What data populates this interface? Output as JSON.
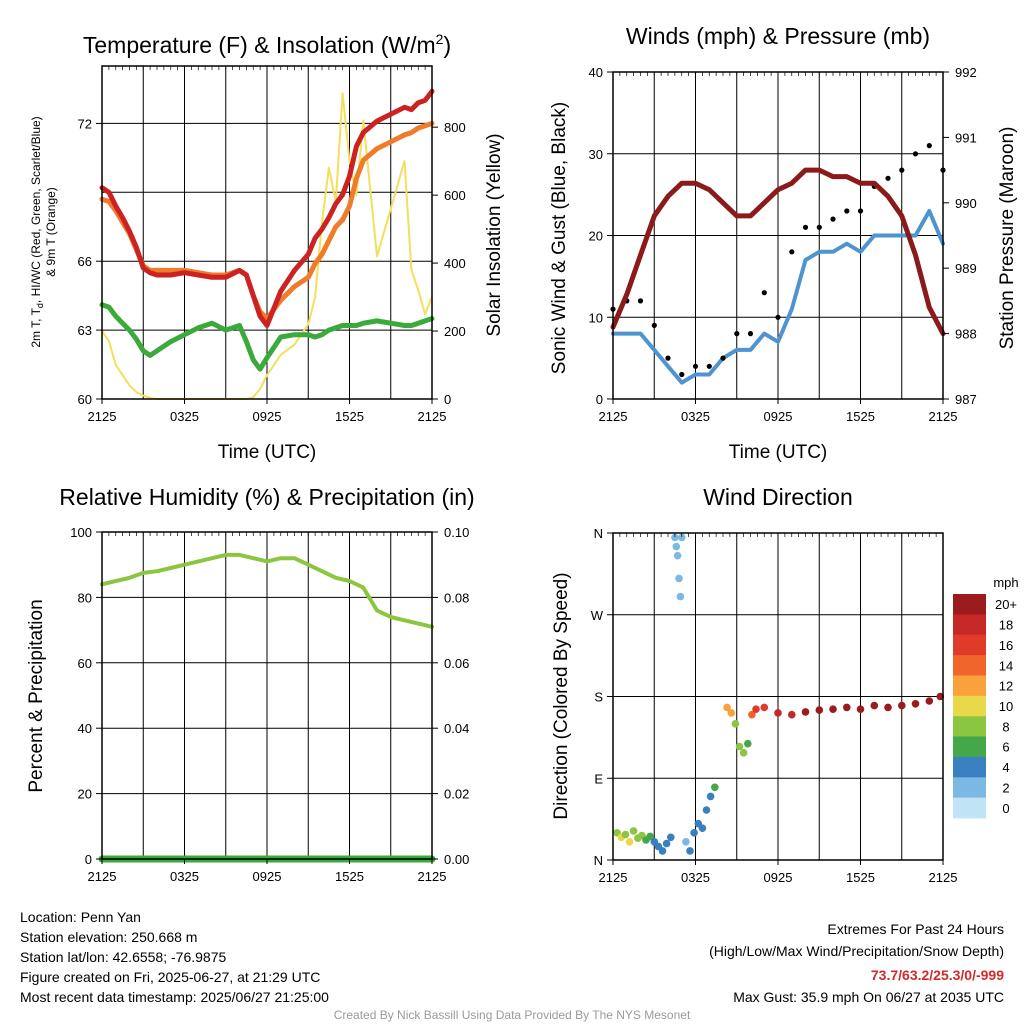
{
  "panels": {
    "temp": {
      "title_main": "Temperature (F) & Insolation (W/m",
      "title_sup": "2",
      "title_close": ")",
      "ylabel_left_1": "2m T, T",
      "ylabel_left_sub": "d",
      "ylabel_left_2": ", HI/WC (Red, Green, Scarlet/Blue)",
      "ylabel_left_3": "& 9m T (Orange)",
      "ylabel_right": "Solar Insolation (Yellow)",
      "xlabel": "Time (UTC)"
    },
    "wind": {
      "title": "Winds (mph) & Pressure (mb)",
      "ylabel_left": "Sonic Wind & Gust (Blue, Black)",
      "ylabel_right": "Station Pressure (Maroon)",
      "xlabel": "Time (UTC)"
    },
    "rh": {
      "title": "Relative Humidity (%) & Precipitation (in)",
      "ylabel_left": "Percent & Precipitation"
    },
    "dir": {
      "title": "Wind Direction",
      "ylabel_left": "Direction (Colored By Speed)",
      "legend_title": "mph"
    }
  },
  "chart_data": [
    {
      "type": "line",
      "title": "Temperature (F) & Insolation (W/m2)",
      "xlabel": "Time (UTC)",
      "x_ticks": [
        "2125",
        "0325",
        "0925",
        "1525",
        "2125"
      ],
      "xlim": [
        0,
        24
      ],
      "ylim": [
        60,
        74.5
      ],
      "y_ticks": [
        60,
        63,
        66,
        72
      ],
      "y2lim": [
        0,
        980
      ],
      "y2_ticks": [
        0,
        200,
        400,
        600,
        800
      ],
      "x": [
        0,
        0.5,
        1,
        1.5,
        2,
        2.5,
        3,
        3.5,
        4,
        5,
        6,
        7,
        8,
        9,
        10,
        10.5,
        11,
        11.5,
        12,
        13,
        14,
        15,
        15.5,
        16,
        16.5,
        17,
        17.5,
        18,
        18.5,
        19,
        20,
        21,
        22,
        22.5,
        23,
        23.5,
        24
      ],
      "series": [
        {
          "name": "2m T",
          "axis": "left",
          "color": "#cc2222",
          "values": [
            69.2,
            69.0,
            68.4,
            67.9,
            67.3,
            66.6,
            65.7,
            65.5,
            65.4,
            65.4,
            65.5,
            65.4,
            65.3,
            65.3,
            65.6,
            65.4,
            64.5,
            63.6,
            63.2,
            64.7,
            65.6,
            66.3,
            67.0,
            67.4,
            67.9,
            68.5,
            68.9,
            69.7,
            71.0,
            71.6,
            72.1,
            72.4,
            72.7,
            72.6,
            72.9,
            73.0,
            73.4
          ]
        },
        {
          "name": "9m T",
          "axis": "left",
          "color": "#f07b2a",
          "values": [
            68.7,
            68.6,
            68.2,
            67.7,
            67.2,
            66.5,
            65.8,
            65.6,
            65.6,
            65.6,
            65.6,
            65.5,
            65.4,
            65.4,
            65.6,
            65.4,
            64.5,
            63.8,
            63.5,
            64.3,
            64.9,
            65.3,
            65.9,
            66.3,
            66.9,
            67.5,
            67.8,
            68.4,
            69.6,
            70.4,
            70.9,
            71.2,
            71.5,
            71.6,
            71.8,
            71.9,
            72.0
          ]
        },
        {
          "name": "Td",
          "axis": "left",
          "color": "#3aaa3a",
          "values": [
            64.1,
            64.0,
            63.6,
            63.3,
            63.0,
            62.6,
            62.1,
            61.9,
            62.1,
            62.5,
            62.8,
            63.1,
            63.3,
            63.0,
            63.2,
            62.5,
            61.7,
            61.3,
            61.8,
            62.7,
            62.8,
            62.8,
            62.7,
            62.8,
            63.0,
            63.1,
            63.2,
            63.2,
            63.2,
            63.3,
            63.4,
            63.3,
            63.2,
            63.2,
            63.3,
            63.4,
            63.5
          ]
        },
        {
          "name": "Solar Insolation",
          "axis": "right",
          "color": "#f2df5a",
          "values": [
            200,
            170,
            100,
            70,
            40,
            20,
            10,
            3,
            0,
            0,
            0,
            0,
            0,
            0,
            0,
            0,
            5,
            30,
            70,
            130,
            160,
            220,
            300,
            520,
            680,
            580,
            900,
            700,
            600,
            820,
            420,
            560,
            700,
            380,
            320,
            250,
            300
          ]
        }
      ]
    },
    {
      "type": "line",
      "title": "Winds (mph) & Pressure (mb)",
      "xlabel": "Time (UTC)",
      "x_ticks": [
        "2125",
        "0325",
        "0925",
        "1525",
        "2125"
      ],
      "xlim": [
        0,
        24
      ],
      "ylim": [
        0,
        40
      ],
      "y_ticks": [
        0,
        10,
        20,
        30,
        40
      ],
      "y2lim": [
        987,
        992
      ],
      "y2_ticks": [
        987,
        988,
        989,
        990,
        991,
        992
      ],
      "x": [
        0,
        1,
        2,
        3,
        4,
        5,
        6,
        7,
        8,
        9,
        10,
        11,
        12,
        13,
        14,
        15,
        16,
        17,
        18,
        19,
        20,
        21,
        22,
        23,
        24
      ],
      "series": [
        {
          "name": "Sonic Wind",
          "axis": "left",
          "color": "#4f93cf",
          "values": [
            8,
            8,
            8,
            6,
            4,
            2,
            3,
            3,
            5,
            6,
            6,
            8,
            7,
            11,
            17,
            18,
            18,
            19,
            18,
            20,
            20,
            20,
            20,
            23,
            19
          ]
        },
        {
          "name": "Gust",
          "axis": "left",
          "color": "#000000",
          "values": [
            11,
            12,
            12,
            9,
            5,
            3,
            4,
            4,
            5,
            8,
            8,
            13,
            10,
            18,
            21,
            21,
            22,
            23,
            23,
            26,
            27,
            28,
            30,
            31,
            28
          ]
        },
        {
          "name": "Station Pressure",
          "axis": "right",
          "color": "#8b1a1a",
          "values": [
            988.1,
            988.6,
            989.2,
            989.8,
            990.1,
            990.3,
            990.3,
            990.2,
            990.0,
            989.8,
            989.8,
            990.0,
            990.2,
            990.3,
            990.5,
            990.5,
            990.4,
            990.4,
            990.3,
            990.3,
            990.1,
            989.8,
            989.2,
            988.4,
            988.0
          ]
        }
      ]
    },
    {
      "type": "line",
      "title": "Relative Humidity (%) & Precipitation (in)",
      "ylabel": "Percent & Precipitation",
      "x_ticks": [
        "2125",
        "0325",
        "0925",
        "1525",
        "2125"
      ],
      "xlim": [
        0,
        24
      ],
      "ylim": [
        0,
        100
      ],
      "y_ticks": [
        0,
        20,
        40,
        60,
        80,
        100
      ],
      "y2lim": [
        0,
        0.1
      ],
      "y2_ticks": [
        "0.00",
        "0.02",
        "0.04",
        "0.06",
        "0.08",
        "0.10"
      ],
      "x": [
        0,
        1,
        2,
        3,
        4,
        5,
        6,
        7,
        8,
        9,
        10,
        11,
        12,
        13,
        14,
        15,
        16,
        17,
        18,
        19,
        20,
        21,
        22,
        23,
        24
      ],
      "series": [
        {
          "name": "Relative Humidity",
          "axis": "left",
          "color": "#8cc640",
          "values": [
            84,
            85,
            86,
            87.5,
            88,
            89,
            90,
            91,
            92,
            93,
            93,
            92,
            91,
            92,
            92,
            90,
            88,
            86,
            85,
            83,
            76,
            74,
            73,
            72,
            71
          ]
        },
        {
          "name": "Precipitation",
          "axis": "right",
          "color": "#3aaa3a",
          "values": [
            0,
            0,
            0,
            0,
            0,
            0,
            0,
            0,
            0,
            0,
            0,
            0,
            0,
            0,
            0,
            0,
            0,
            0,
            0,
            0,
            0,
            0,
            0,
            0,
            0
          ]
        }
      ]
    },
    {
      "type": "scatter",
      "title": "Wind Direction",
      "ylabel": "Direction (Colored By Speed)",
      "x_ticks": [
        "2125",
        "0325",
        "0925",
        "1525",
        "2125"
      ],
      "xlim": [
        0,
        24
      ],
      "y_ticks": [
        "N",
        "E",
        "S",
        "W",
        "N"
      ],
      "ylim": [
        0,
        360
      ],
      "colorbar_labels": [
        "20+",
        "18",
        "16",
        "14",
        "12",
        "10",
        "8",
        "6",
        "4",
        "2",
        "0"
      ],
      "colorbar_colors": [
        "#9b1c1c",
        "#c62828",
        "#e03a2a",
        "#f0652a",
        "#f9a23c",
        "#e8d84a",
        "#8cc640",
        "#44a84a",
        "#3a7fc0",
        "#7cb8e4",
        "#c0e4f6"
      ],
      "points": [
        [
          0.3,
          30,
          7
        ],
        [
          0.6,
          25,
          10
        ],
        [
          0.9,
          28,
          8
        ],
        [
          1.2,
          20,
          9
        ],
        [
          1.5,
          32,
          7
        ],
        [
          1.8,
          24,
          8
        ],
        [
          2.1,
          27,
          7
        ],
        [
          2.4,
          22,
          6
        ],
        [
          2.7,
          26,
          5
        ],
        [
          3.0,
          20,
          4
        ],
        [
          3.3,
          15,
          4
        ],
        [
          3.6,
          10,
          3
        ],
        [
          3.9,
          18,
          4
        ],
        [
          4.2,
          25,
          3
        ],
        [
          4.5,
          355,
          2
        ],
        [
          4.6,
          345,
          2
        ],
        [
          4.7,
          335,
          2
        ],
        [
          4.8,
          310,
          2
        ],
        [
          4.9,
          290,
          2
        ],
        [
          5.0,
          355,
          2
        ],
        [
          5.3,
          20,
          2
        ],
        [
          5.6,
          10,
          3
        ],
        [
          5.9,
          30,
          3
        ],
        [
          6.2,
          40,
          3
        ],
        [
          6.5,
          35,
          3
        ],
        [
          6.8,
          55,
          4
        ],
        [
          7.1,
          70,
          4
        ],
        [
          7.4,
          80,
          5
        ],
        [
          8.3,
          168,
          12
        ],
        [
          8.6,
          162,
          11
        ],
        [
          8.9,
          150,
          8
        ],
        [
          9.2,
          125,
          7
        ],
        [
          9.5,
          118,
          7
        ],
        [
          9.8,
          128,
          6
        ],
        [
          10.1,
          160,
          14
        ],
        [
          10.4,
          166,
          15
        ],
        [
          11.0,
          168,
          16
        ],
        [
          12.0,
          162,
          17
        ],
        [
          13.0,
          160,
          18
        ],
        [
          14.0,
          163,
          19
        ],
        [
          15.0,
          165,
          20
        ],
        [
          16.0,
          166,
          20
        ],
        [
          17.0,
          168,
          20
        ],
        [
          18.0,
          166,
          20
        ],
        [
          19.0,
          170,
          20
        ],
        [
          20.0,
          168,
          20
        ],
        [
          21.0,
          170,
          20
        ],
        [
          22.0,
          172,
          20
        ],
        [
          23.0,
          175,
          20
        ],
        [
          23.8,
          180,
          20
        ]
      ]
    }
  ],
  "info": {
    "location": "Location: Penn Yan",
    "elevation": "Station elevation: 250.668 m",
    "latlon": "Station lat/lon: 42.6558; -76.9875",
    "created": "Figure created on Fri, 2025-06-27, at 21:29 UTC",
    "recent": "Most recent data timestamp: 2025/06/27 21:25:00"
  },
  "extremes": {
    "title": "Extremes For Past 24 Hours",
    "subtitle": "(High/Low/Max Wind/Precipitation/Snow Depth)",
    "values": "73.7/63.2/25.3/0/-999",
    "values_color": "#d02a2a",
    "gust": "Max Gust: 35.9 mph On 06/27 at 2035 UTC"
  },
  "credit": "Created By Nick Bassill Using Data Provided By The NYS Mesonet"
}
